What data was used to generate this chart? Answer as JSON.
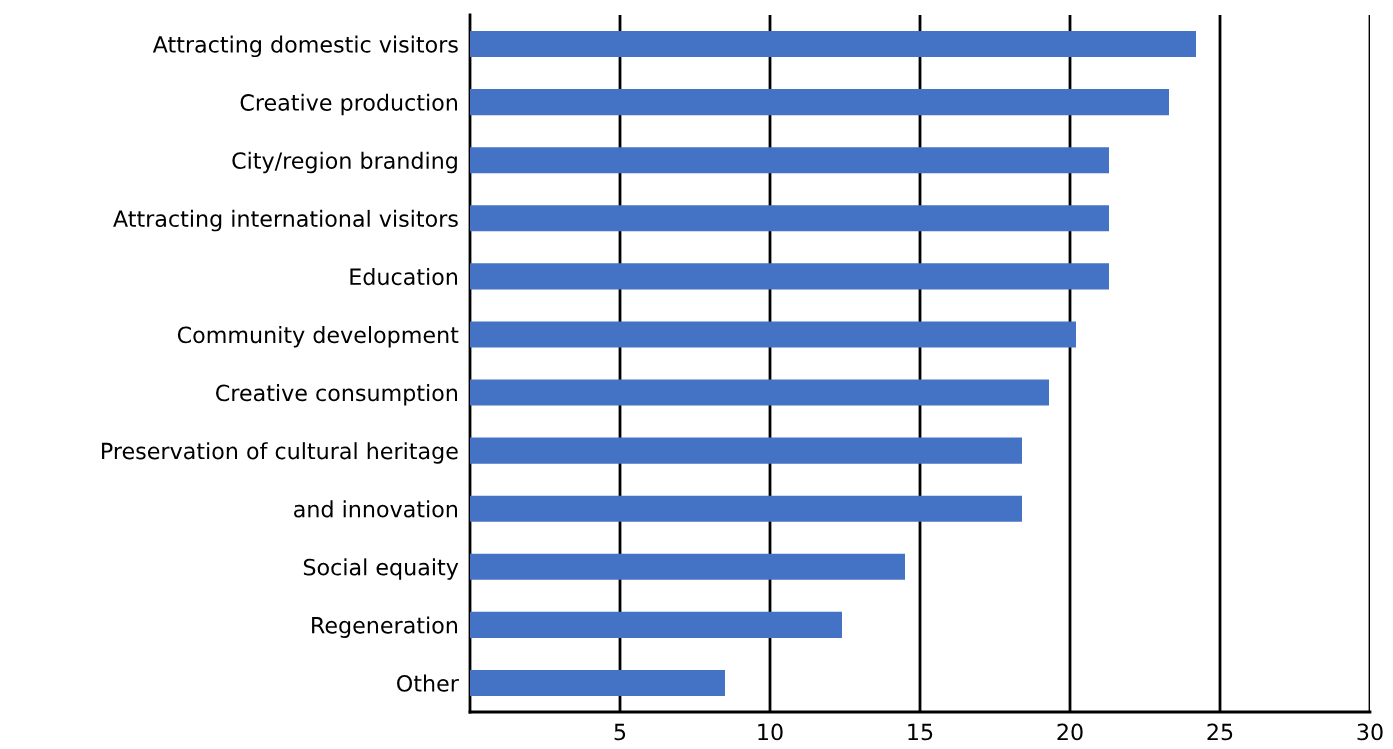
{
  "chart_data": {
    "type": "bar",
    "orientation": "horizontal",
    "categories": [
      "Attracting domestic visitors",
      "Creative production",
      "City/region branding",
      "Attracting international visitors",
      "Education",
      "Community development",
      "Creative consumption",
      "Preservation of cultural heritage",
      "and innovation",
      "Social equaity",
      "Regeneration",
      "Other"
    ],
    "values": [
      24.2,
      23.3,
      21.3,
      21.3,
      21.3,
      20.2,
      19.3,
      18.4,
      18.4,
      14.5,
      12.4,
      8.5
    ],
    "color": "#4472c4",
    "xlim": [
      0,
      30
    ],
    "xticks": [
      5,
      10,
      15,
      20,
      25,
      30
    ],
    "grid": "x"
  }
}
